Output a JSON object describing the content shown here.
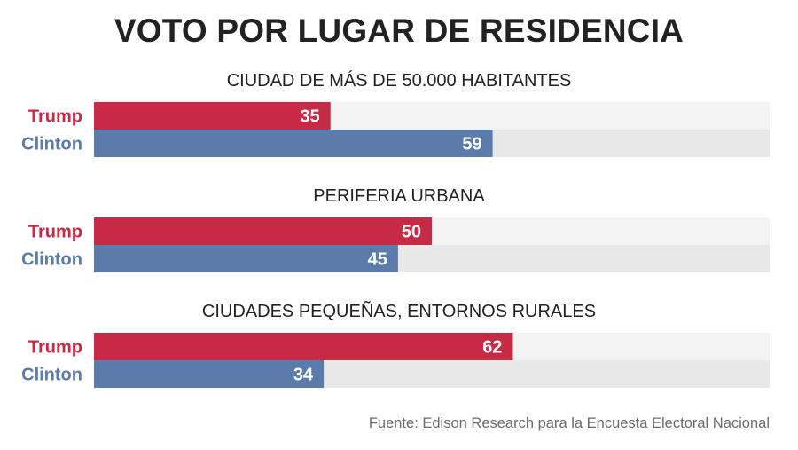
{
  "title": "VOTO POR LUGAR DE RESIDENCIA",
  "source": "Fuente: Edison Research para la Encuesta Electoral Nacional",
  "colors": {
    "trump": "#c62a45",
    "clinton": "#5b7bab",
    "track_light": "#f3f3f3",
    "track_dark": "#e8e8e8"
  },
  "chart_data": {
    "type": "bar",
    "orientation": "horizontal",
    "xlim": [
      0,
      100
    ],
    "groups": [
      {
        "title": "CIUDAD DE MÁS DE 50.000 HABITANTES",
        "bars": [
          {
            "name": "Trump",
            "value": 35
          },
          {
            "name": "Clinton",
            "value": 59
          }
        ]
      },
      {
        "title": "PERIFERIA URBANA",
        "bars": [
          {
            "name": "Trump",
            "value": 50
          },
          {
            "name": "Clinton",
            "value": 45
          }
        ]
      },
      {
        "title": "CIUDADES PEQUEÑAS, ENTORNOS RURALES",
        "bars": [
          {
            "name": "Trump",
            "value": 62
          },
          {
            "name": "Clinton",
            "value": 34
          }
        ]
      }
    ]
  }
}
